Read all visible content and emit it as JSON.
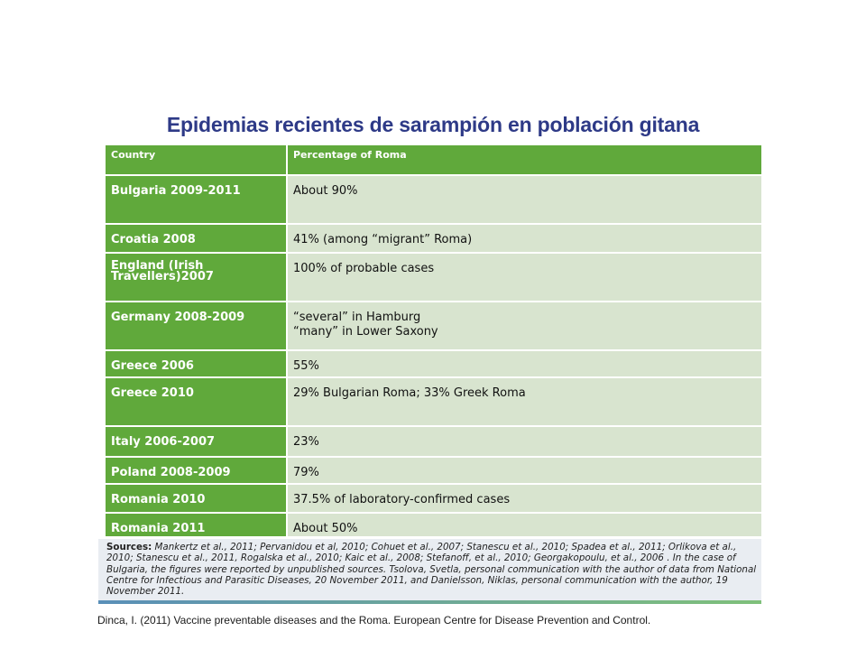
{
  "slide": {
    "title": "Epidemias recientes de sarampión en población gitana",
    "citation": "Dinca, I. (2011) Vaccine preventable diseases and the Roma. European Centre for Disease Prevention and Control."
  },
  "table": {
    "headers": {
      "country": "Country",
      "percentage": "Percentage of Roma"
    },
    "rows": [
      {
        "country": "Bulgaria 2009-2011",
        "value": "About 90%"
      },
      {
        "country": "Croatia 2008",
        "value": "41% (among “migrant” Roma)"
      },
      {
        "country": "England (Irish Travellers)2007",
        "value": "100% of probable cases"
      },
      {
        "country": "Germany 2008-2009",
        "value": "“several” in Hamburg\n“many” in Lower Saxony"
      },
      {
        "country": "Greece 2006",
        "value": "55%"
      },
      {
        "country": "Greece 2010",
        "value": "29% Bulgarian Roma; 33% Greek Roma"
      },
      {
        "country": "Italy 2006-2007",
        "value": "23%"
      },
      {
        "country": "Poland 2008-2009",
        "value": "79%"
      },
      {
        "country": "Romania 2010",
        "value": "37.5% of laboratory-confirmed cases"
      },
      {
        "country": "Romania 2011",
        "value": "About 50%"
      }
    ]
  },
  "sources": {
    "label": "Sources:",
    "text": "Mankertz et al., 2011; Pervanidou et al, 2010; Cohuet et al., 2007; Stanescu et al., 2010; Spadea et al., 2011; Orlikova et al., 2010; Stanescu et al., 2011, Rogalska et al., 2010; Kaic et al., 2008; Stefanoff, et al., 2010; Georgakopoulu, et al., 2006 . In the case of Bulgaria, the figures were reported by unpublished sources.  Tsolova, Svetla, personal communication with the author of data from National Centre for Infectious and Parasitic Diseases, 20 November 2011, and Danielsson, Niklas, personal communication with the author, 19 November 2011."
  }
}
